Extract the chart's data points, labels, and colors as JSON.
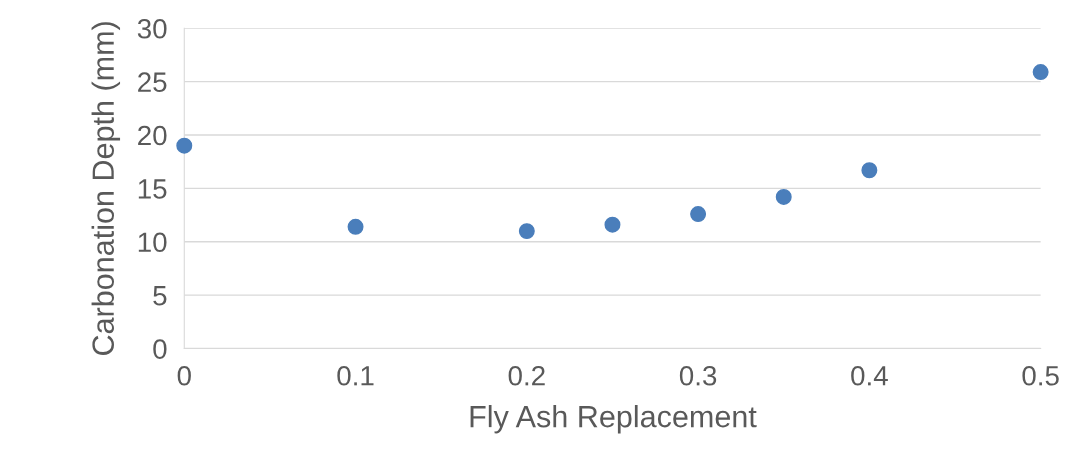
{
  "chart_data": {
    "type": "scatter",
    "xlabel": "Fly Ash Replacement",
    "ylabel": "Carbonation Depth (mm)",
    "x": [
      0,
      0.1,
      0.2,
      0.25,
      0.3,
      0.35,
      0.4,
      0.5
    ],
    "values": [
      19.0,
      11.4,
      11.0,
      11.6,
      12.6,
      14.2,
      16.7,
      25.9
    ],
    "color": "#4a7ebb",
    "marker": "circle",
    "xlim": [
      0,
      0.5
    ],
    "xticks": [
      0,
      0.1,
      0.2,
      0.3,
      0.4,
      0.5
    ],
    "ylim": [
      0,
      30
    ],
    "yticks": [
      0,
      5,
      10,
      15,
      20,
      25,
      30
    ],
    "grid": "y",
    "legend": false
  }
}
